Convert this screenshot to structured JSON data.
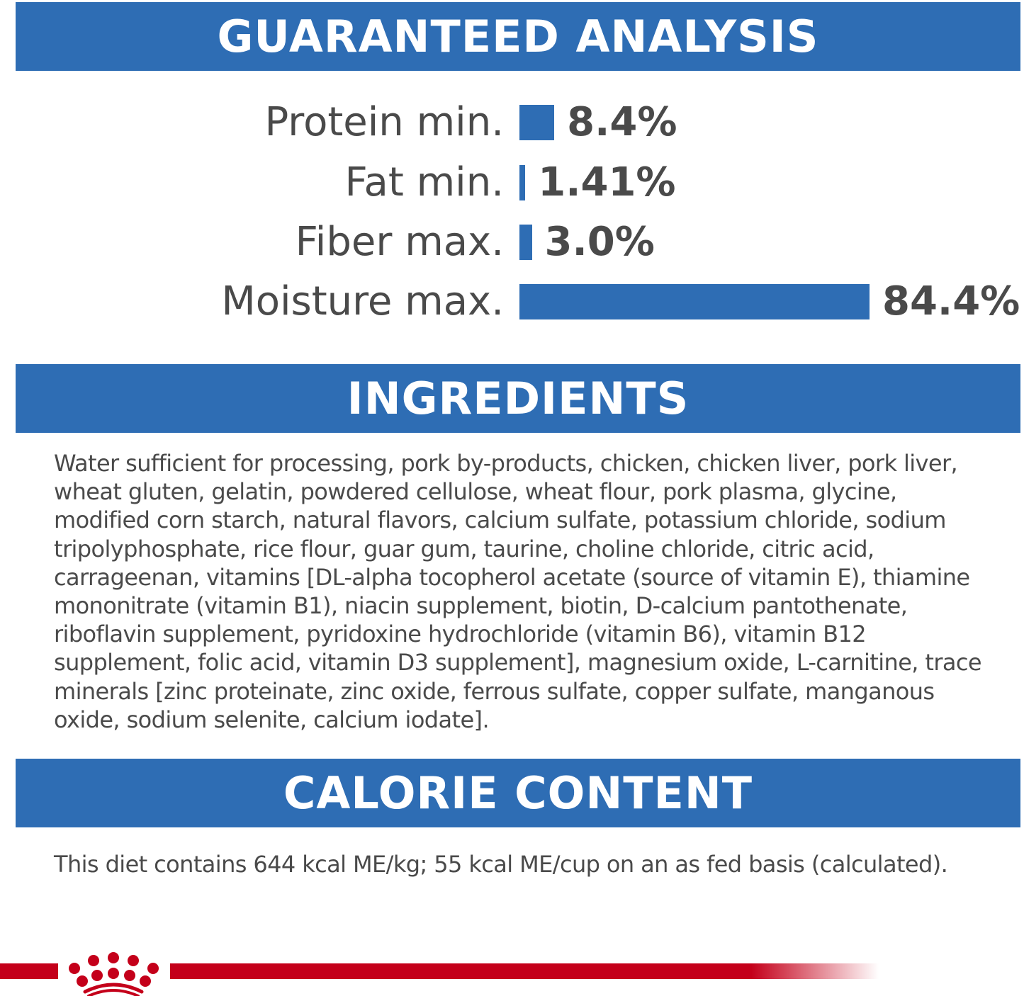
{
  "sections": {
    "analysis_title": "GUARANTEED ANALYSIS",
    "ingredients_title": "INGREDIENTS",
    "calorie_title": "CALORIE CONTENT"
  },
  "analysis": [
    {
      "label": "Protein min.",
      "value": 8.4,
      "display": "8.4%"
    },
    {
      "label": "Fat min.",
      "value": 1.41,
      "display": "1.41%"
    },
    {
      "label": "Fiber max.",
      "value": 3.0,
      "display": "3.0%"
    },
    {
      "label": "Moisture max.",
      "value": 84.4,
      "display": "84.4%"
    }
  ],
  "ingredients_lines": [
    "Water sufficient for processing, pork by-products, chicken, chicken liver, pork liver,",
    "wheat gluten, gelatin, powdered cellulose, wheat flour, pork plasma, glycine,",
    "modified corn starch, natural flavors, calcium sulfate, potassium chloride, sodium",
    "tripolyphosphate, rice flour, guar gum, taurine, choline chloride, citric acid,",
    "carrageenan, vitamins [DL-alpha tocopherol acetate (source of vitamin E), thiamine",
    "mononitrate (vitamin B1), niacin supplement, biotin, D-calcium pantothenate,",
    "riboflavin supplement, pyridoxine hydrochloride (vitamin B6), vitamin B12",
    "supplement, folic acid, vitamin D3 supplement], magnesium oxide, L-carnitine, trace",
    "minerals [zinc proteinate, zinc oxide, ferrous sulfate, copper sulfate, manganous",
    "oxide, sodium selenite, calcium iodate]."
  ],
  "calorie_text": "This diet contains 644 kcal ME/kg; 55 kcal ME/cup on an as fed basis (calculated).",
  "colors": {
    "accent_blue": "#2e6db4",
    "brand_red": "#c4001a",
    "text": "#4a4a4a"
  },
  "logo": {
    "icon": "crown-logo-icon"
  }
}
